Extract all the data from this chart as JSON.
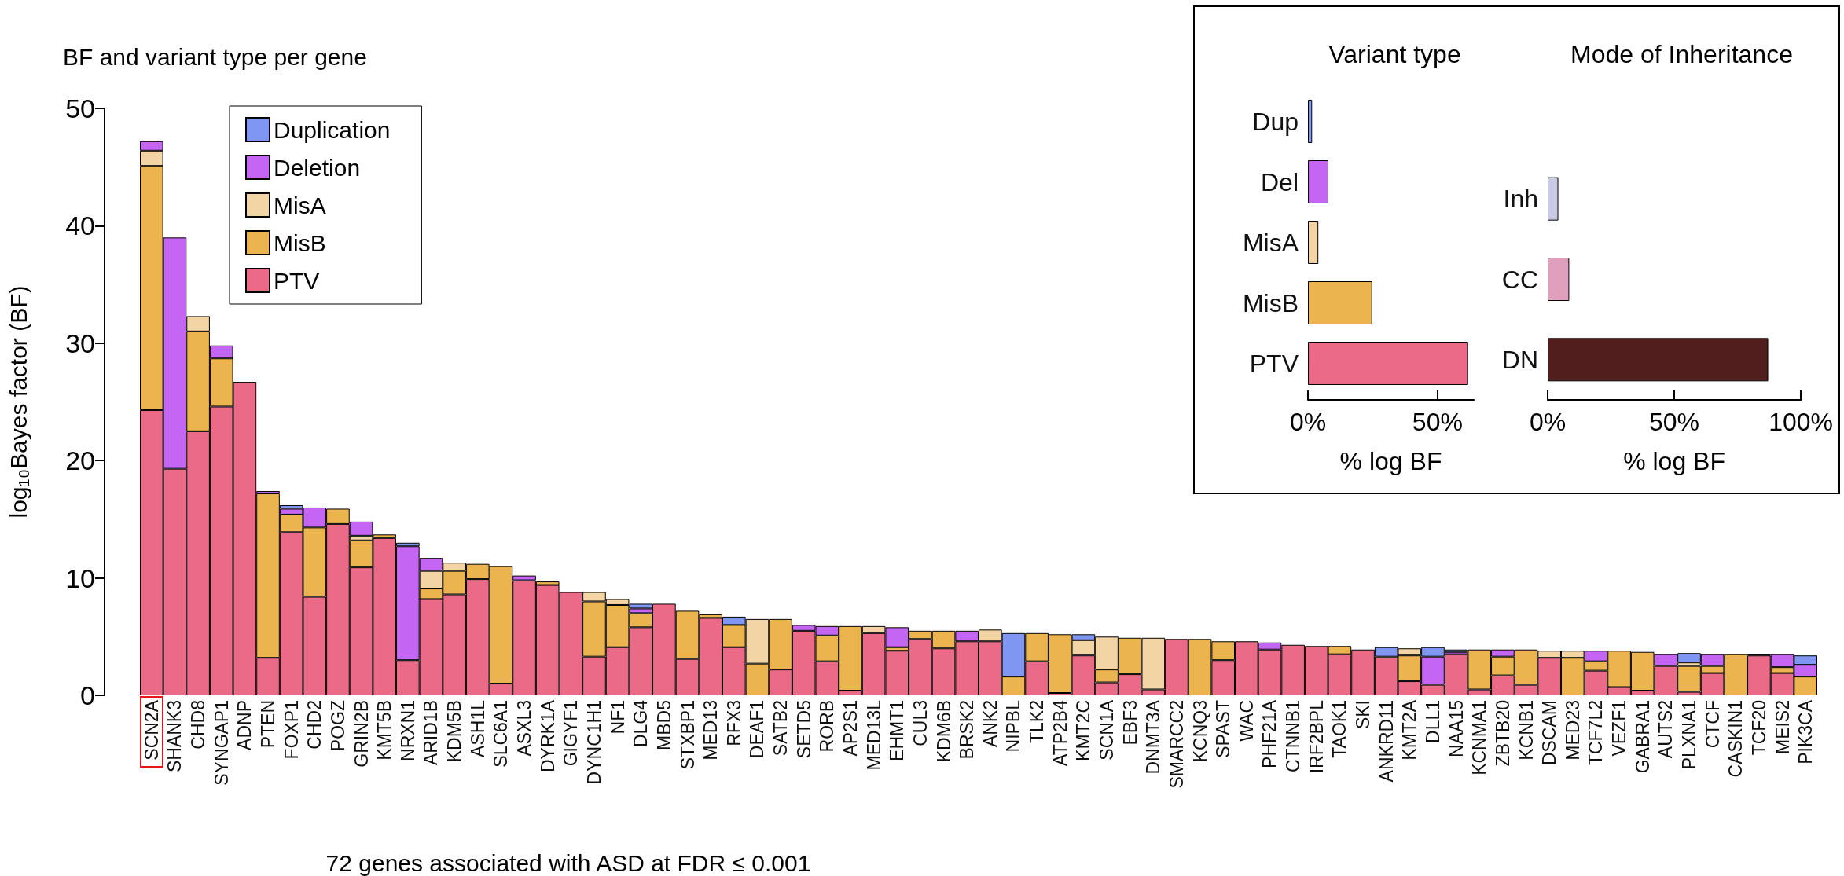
{
  "chart_data": [
    {
      "type": "bar",
      "title": "BF and variant type per gene",
      "xlabel": "72 genes associated with ASD at FDR ≤ 0.001",
      "ylabel": "log₁₀Bayes factor (BF)",
      "stacked": true,
      "legend": "top left",
      "ylim": [
        0,
        50
      ],
      "yticks": [
        0,
        10,
        20,
        30,
        40,
        50
      ],
      "categories": [
        "SCN2A",
        "SHANK3",
        "CHD8",
        "SYNGAP1",
        "ADNP",
        "PTEN",
        "FOXP1",
        "CHD2",
        "POGZ",
        "GRIN2B",
        "KMT5B",
        "NRXN1",
        "ARID1B",
        "KDM5B",
        "ASH1L",
        "SLC6A1",
        "ASXL3",
        "DYRK1A",
        "GIGYF1",
        "DYNC1H1",
        "NF1",
        "DLG4",
        "MBD5",
        "STXBP1",
        "MED13",
        "RFX3",
        "DEAF1",
        "SATB2",
        "SETD5",
        "RORB",
        "AP2S1",
        "MED13L",
        "EHMT1",
        "CUL3",
        "KDM6B",
        "BRSK2",
        "ANK2",
        "NIPBL",
        "TLK2",
        "ATP2B4",
        "KMT2C",
        "SCN1A",
        "EBF3",
        "DNMT3A",
        "SMARCC2",
        "KCNQ3",
        "SPAST",
        "WAC",
        "PHF21A",
        "CTNNB1",
        "IRF2BPL",
        "TAOK1",
        "SKI",
        "ANKRD11",
        "KMT2A",
        "DLL1",
        "NAA15",
        "KCNMA1",
        "ZBTB20",
        "KCNB1",
        "DSCAM",
        "MED23",
        "TCF7L2",
        "VEZF1",
        "GABRA1",
        "AUTS2",
        "PLXNA1",
        "CTCF",
        "CASKIN1",
        "TCF20",
        "MEIS2",
        "PIK3CA"
      ],
      "series": [
        {
          "name": "PTV",
          "color": "#ea6a88",
          "values": [
            24.3,
            19.3,
            22.5,
            24.6,
            26.7,
            3.2,
            13.9,
            8.4,
            14.6,
            10.9,
            13.4,
            3.0,
            8.2,
            8.6,
            9.9,
            1.0,
            9.8,
            9.4,
            8.8,
            3.3,
            4.1,
            5.8,
            7.8,
            3.1,
            6.6,
            4.1,
            null,
            2.2,
            5.5,
            2.9,
            0.4,
            5.3,
            3.8,
            4.8,
            4.0,
            4.6,
            4.6,
            null,
            2.9,
            0.2,
            3.4,
            1.1,
            1.8,
            0.5,
            4.8,
            null,
            3.0,
            4.6,
            3.9,
            4.3,
            4.2,
            3.5,
            3.9,
            3.3,
            1.2,
            0.9,
            3.5,
            0.5,
            1.7,
            0.9,
            3.2,
            null,
            2.1,
            0.7,
            0.4,
            2.5,
            0.3,
            1.9,
            null,
            3.4,
            1.9,
            null
          ]
        },
        {
          "name": "MisB",
          "color": "#ebb44e",
          "values": [
            20.8,
            null,
            8.5,
            4.1,
            null,
            14.0,
            1.5,
            5.9,
            1.3,
            2.3,
            0.3,
            null,
            0.9,
            2.0,
            1.3,
            10.0,
            null,
            0.3,
            null,
            4.7,
            3.6,
            1.2,
            null,
            4.1,
            0.3,
            1.9,
            2.7,
            4.3,
            null,
            2.2,
            5.5,
            null,
            0.3,
            0.7,
            1.5,
            null,
            null,
            1.6,
            2.4,
            5.0,
            null,
            1.1,
            3.1,
            null,
            null,
            4.8,
            1.6,
            null,
            null,
            null,
            null,
            0.7,
            null,
            null,
            2.2,
            null,
            null,
            3.4,
            1.6,
            3.0,
            null,
            3.2,
            0.8,
            3.1,
            3.3,
            null,
            2.2,
            0.6,
            3.5,
            null,
            0.5,
            1.6
          ]
        },
        {
          "name": "MisA",
          "color": "#f3d4a4",
          "values": [
            1.3,
            null,
            1.3,
            null,
            null,
            null,
            null,
            null,
            null,
            0.4,
            null,
            null,
            1.5,
            0.7,
            null,
            null,
            null,
            null,
            null,
            0.8,
            0.5,
            null,
            null,
            null,
            null,
            null,
            3.8,
            null,
            null,
            null,
            null,
            0.6,
            null,
            null,
            null,
            null,
            1.0,
            null,
            null,
            null,
            1.3,
            2.8,
            null,
            4.4,
            null,
            null,
            null,
            null,
            null,
            null,
            null,
            null,
            null,
            null,
            0.6,
            null,
            null,
            null,
            null,
            null,
            0.6,
            0.6,
            null,
            null,
            null,
            null,
            0.3,
            null,
            null,
            null,
            null,
            null
          ]
        },
        {
          "name": "Deletion",
          "color": "#c565f3",
          "values": [
            0.8,
            19.7,
            null,
            1.1,
            null,
            0.2,
            0.5,
            1.7,
            null,
            1.2,
            null,
            9.7,
            1.1,
            null,
            null,
            null,
            0.4,
            null,
            null,
            null,
            null,
            0.4,
            null,
            null,
            null,
            null,
            null,
            null,
            0.5,
            0.8,
            null,
            null,
            1.7,
            null,
            null,
            0.9,
            null,
            null,
            null,
            null,
            null,
            null,
            null,
            null,
            null,
            null,
            null,
            null,
            0.6,
            null,
            null,
            null,
            null,
            null,
            null,
            2.4,
            0.2,
            null,
            0.6,
            null,
            null,
            null,
            0.9,
            null,
            null,
            1.0,
            null,
            1.0,
            null,
            null,
            1.1,
            1.0
          ]
        },
        {
          "name": "Duplication",
          "color": "#7f96f2",
          "values": [
            null,
            null,
            null,
            null,
            null,
            null,
            0.3,
            null,
            null,
            null,
            null,
            0.3,
            null,
            null,
            null,
            null,
            null,
            null,
            null,
            null,
            null,
            0.4,
            null,
            null,
            null,
            0.7,
            null,
            null,
            null,
            null,
            null,
            null,
            null,
            null,
            null,
            null,
            null,
            3.7,
            null,
            null,
            0.5,
            null,
            null,
            null,
            null,
            null,
            null,
            null,
            null,
            null,
            null,
            null,
            null,
            0.8,
            null,
            0.8,
            0.2,
            null,
            null,
            null,
            null,
            null,
            null,
            null,
            null,
            null,
            0.8,
            null,
            null,
            0.1,
            null,
            0.8
          ]
        }
      ]
    },
    {
      "type": "bar",
      "orientation": "horizontal",
      "title": "Variant type",
      "xlabel": "% log BF",
      "categories": [
        "Dup",
        "Del",
        "MisA",
        "MisB",
        "PTV"
      ],
      "values": [
        1.6,
        7.9,
        4.0,
        24.8,
        61.8
      ],
      "colors": [
        "#7f96f2",
        "#c565f3",
        "#f3d4a4",
        "#ebb44e",
        "#ea6a88"
      ],
      "xlim": [
        0,
        64
      ],
      "xticks": [
        {
          "value": 0,
          "label": "0%"
        },
        {
          "value": 50,
          "label": "50%"
        }
      ]
    },
    {
      "type": "bar",
      "orientation": "horizontal",
      "title": "Mode of Inheritance",
      "xlabel": "% log BF",
      "categories": [
        "Inh",
        "CC",
        "DN"
      ],
      "values": [
        4.2,
        8.5,
        87.1
      ],
      "colors": [
        "#c8cae6",
        "#e0a0bd",
        "#521d1d"
      ],
      "xlim": [
        0,
        100
      ],
      "xticks": [
        {
          "value": 0,
          "label": "0%"
        },
        {
          "value": 50,
          "label": "50%"
        },
        {
          "value": 100,
          "label": "100%"
        }
      ]
    }
  ]
}
